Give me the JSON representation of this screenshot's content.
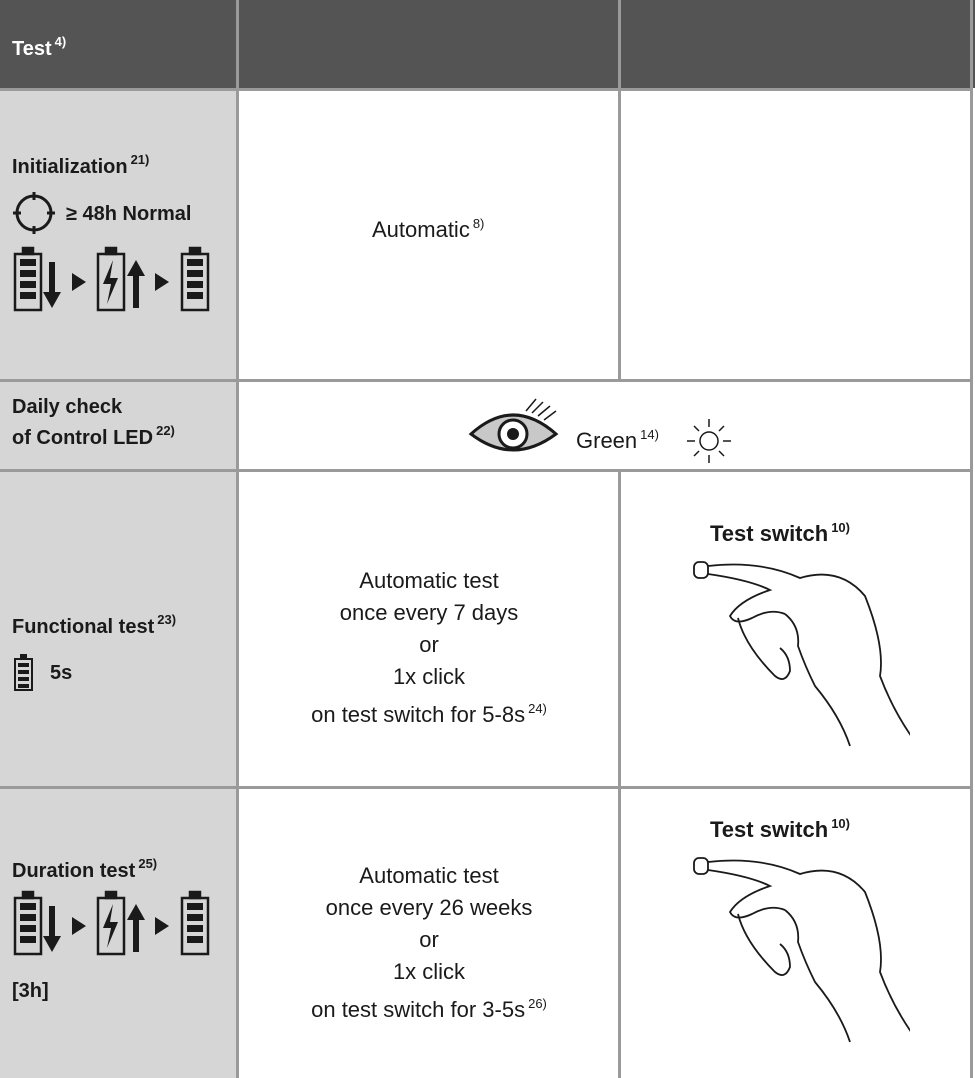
{
  "header": {
    "test": "Test",
    "test_note": "4)"
  },
  "rows": [
    {
      "label": "Initialization",
      "label_note": "21)",
      "icon_text": "≥ 48h Normal",
      "automatic": "Automatic",
      "automatic_note": "8)"
    },
    {
      "label_lines": [
        "Daily check",
        "of Control LED"
      ],
      "label_note": "22)",
      "indicator": "Green",
      "indicator_note": "14)"
    },
    {
      "label": "Functional test",
      "label_note": "23)",
      "duration": "5s",
      "automatic_lines": [
        "Automatic test",
        "once every 7 days",
        "or",
        "1x click",
        "on test switch for 5-8s"
      ],
      "automatic_note": "24)",
      "manual": "Test switch",
      "manual_note": "10)"
    },
    {
      "label": "Duration test",
      "label_note": "25)",
      "duration": "[3h]",
      "automatic_lines": [
        "Automatic test",
        "once every 26 weeks",
        "or",
        "1x click",
        "on test switch for 3-5s"
      ],
      "automatic_note": "26)",
      "manual": "Test switch",
      "manual_note": "10)"
    }
  ]
}
